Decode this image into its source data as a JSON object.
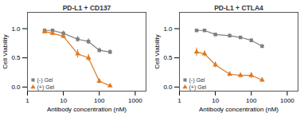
{
  "chart_data": [
    {
      "type": "line",
      "title": "PD-L1 + CD137",
      "xlabel": "Antibody concentration (nM)",
      "ylabel": "Cell Viability",
      "x": [
        3,
        5,
        10,
        25,
        50,
        100,
        200
      ],
      "series": [
        {
          "name": "(-) Gel",
          "color": "#7f7f7f",
          "marker": "square",
          "values": [
            0.97,
            0.97,
            0.92,
            0.82,
            0.78,
            0.63,
            0.6
          ],
          "errors": [
            0.03,
            0.02,
            0.04,
            0.05,
            0.05,
            0.04,
            0.04
          ]
        },
        {
          "name": "(+) Gel",
          "color": "#E07820",
          "marker": "triangle",
          "values": [
            0.95,
            0.92,
            0.87,
            0.57,
            0.5,
            0.1,
            0.02
          ],
          "errors": [
            0.04,
            0.04,
            0.04,
            0.07,
            0.06,
            0.04,
            0.02
          ]
        }
      ],
      "log": "x",
      "xlim": [
        1,
        2000
      ],
      "xticks": [
        1,
        10,
        100,
        1000
      ],
      "ylim": [
        -0.07,
        1.28
      ],
      "yticks": [
        {
          "value": 0.0,
          "label": "0.0"
        },
        {
          "value": 0.5,
          "label": "0.5"
        },
        {
          "value": 1.0,
          "label": "1.0"
        }
      ],
      "grid": false,
      "legend": "lower left"
    },
    {
      "type": "line",
      "title": "PD-L1 + CTLA4",
      "xlabel": "Antibody concentration (nM)",
      "ylabel": "Cell Viability",
      "x": [
        3,
        5,
        10,
        25,
        50,
        100,
        200
      ],
      "series": [
        {
          "name": "(-) Gel",
          "color": "#7f7f7f",
          "marker": "square",
          "values": [
            0.97,
            0.97,
            0.9,
            0.88,
            0.85,
            0.8,
            0.7
          ],
          "errors": [
            0.01,
            0.01,
            0.02,
            0.03,
            0.02,
            0.03,
            0.03
          ]
        },
        {
          "name": "(+) Gel",
          "color": "#E07820",
          "marker": "triangle",
          "values": [
            0.6,
            0.57,
            0.38,
            0.22,
            0.2,
            0.2,
            0.12
          ],
          "errors": [
            0.07,
            0.05,
            0.05,
            0.04,
            0.04,
            0.05,
            0.04
          ]
        }
      ],
      "log": "x",
      "xlim": [
        1,
        2000
      ],
      "xticks": [
        1,
        10,
        100,
        1000
      ],
      "ylim": [
        -0.07,
        1.28
      ],
      "yticks": [
        {
          "value": 0.0,
          "label": "0.0"
        },
        {
          "value": 0.5,
          "label": "0.5"
        },
        {
          "value": 1.0,
          "label": "1.0"
        }
      ],
      "grid": false,
      "legend": "lower left"
    }
  ]
}
